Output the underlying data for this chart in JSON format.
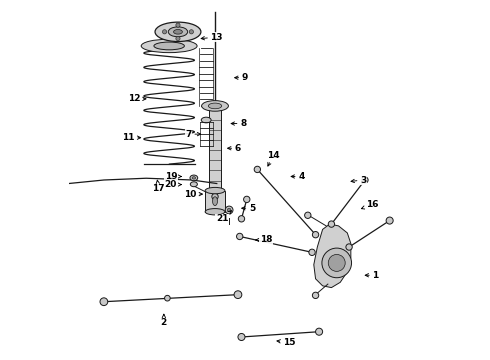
{
  "background_color": "#ffffff",
  "line_color": "#1a1a1a",
  "label_color": "#000000",
  "figsize": [
    4.9,
    3.6
  ],
  "dpi": 100,
  "parts_labels": {
    "1": [
      0.83,
      0.23,
      0.87,
      0.23
    ],
    "2": [
      0.27,
      0.13,
      0.27,
      0.095
    ],
    "3": [
      0.79,
      0.495,
      0.835,
      0.5
    ],
    "4": [
      0.62,
      0.51,
      0.66,
      0.51
    ],
    "5": [
      0.48,
      0.42,
      0.52,
      0.42
    ],
    "6": [
      0.44,
      0.59,
      0.48,
      0.59
    ],
    "7": [
      0.385,
      0.63,
      0.34,
      0.63
    ],
    "8": [
      0.45,
      0.66,
      0.495,
      0.66
    ],
    "9": [
      0.46,
      0.79,
      0.5,
      0.79
    ],
    "10": [
      0.39,
      0.46,
      0.345,
      0.46
    ],
    "11": [
      0.215,
      0.62,
      0.17,
      0.62
    ],
    "12": [
      0.23,
      0.73,
      0.185,
      0.73
    ],
    "13": [
      0.365,
      0.9,
      0.42,
      0.905
    ],
    "14": [
      0.56,
      0.53,
      0.58,
      0.57
    ],
    "15": [
      0.58,
      0.045,
      0.625,
      0.04
    ],
    "16": [
      0.82,
      0.415,
      0.86,
      0.43
    ],
    "17": [
      0.25,
      0.51,
      0.255,
      0.475
    ],
    "18": [
      0.52,
      0.33,
      0.56,
      0.33
    ],
    "19": [
      0.33,
      0.51,
      0.29,
      0.51
    ],
    "20": [
      0.33,
      0.487,
      0.29,
      0.487
    ],
    "21": [
      0.47,
      0.42,
      0.435,
      0.39
    ]
  }
}
